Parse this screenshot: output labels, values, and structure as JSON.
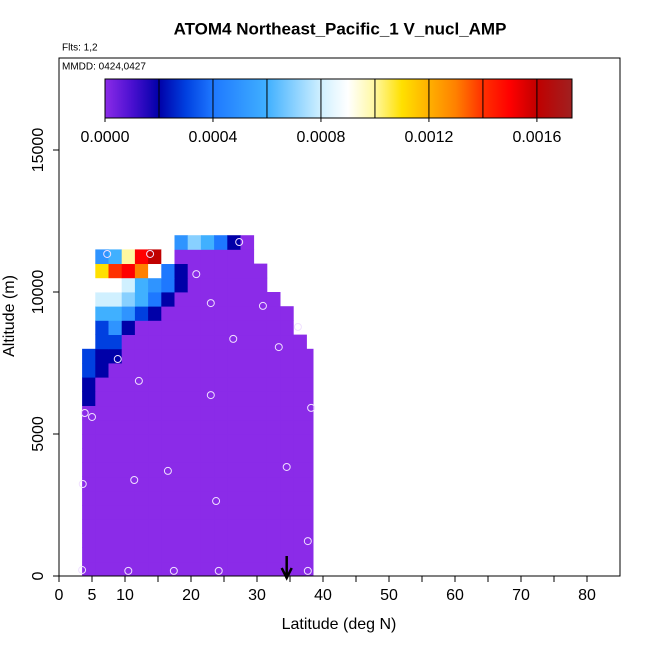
{
  "chart_data": {
    "type": "heatmap",
    "title": "ATOM4 Northeast_Pacific_1 V_nucl_AMP",
    "annotations": [
      "Flts: 1,2",
      "MMDD: 0424,0427"
    ],
    "xlabel": "Latitude (deg N)",
    "ylabel": "Altitude (m)",
    "xlim": [
      0,
      85
    ],
    "ylim": [
      0,
      18240
    ],
    "xticks": [
      0,
      5,
      10,
      20,
      30,
      40,
      50,
      60,
      70,
      80
    ],
    "xminorticks": [
      15,
      25,
      35,
      45,
      55,
      65,
      75
    ],
    "yticks": [
      0,
      5000,
      10000,
      15000
    ],
    "x_edges": [
      3.5,
      5.5,
      7.5,
      9.5,
      11.5,
      13.5,
      15.5,
      17.5,
      19.5,
      21.5,
      23.5,
      25.5,
      27.5,
      29.5,
      31.5,
      33.5,
      35.5,
      37.5,
      38.5
    ],
    "y_edges": [
      0,
      500,
      1000,
      1500,
      2000,
      2500,
      3000,
      3500,
      4000,
      4500,
      5000,
      5500,
      6000,
      6500,
      7000,
      7500,
      8000,
      8500,
      9000,
      9500,
      10000,
      10500,
      11000,
      11500,
      12000
    ],
    "z": [
      [
        0,
        0,
        0,
        0,
        0,
        0,
        0,
        0,
        0,
        0,
        0,
        0,
        0,
        0,
        0,
        0,
        0,
        0
      ],
      [
        0,
        0,
        0,
        0,
        0,
        0,
        0,
        0,
        0,
        0,
        0,
        0,
        0,
        0,
        0,
        0,
        0,
        0
      ],
      [
        0,
        0,
        0,
        0,
        0,
        0,
        0,
        0,
        0,
        0,
        0,
        0,
        0,
        0,
        0,
        0,
        0,
        0
      ],
      [
        0,
        0,
        0,
        0,
        0,
        0,
        0,
        0,
        0,
        0,
        0,
        0,
        0,
        0,
        0,
        0,
        0,
        0
      ],
      [
        0,
        0,
        0,
        0,
        0,
        0,
        0,
        0,
        0,
        0,
        0,
        0,
        0,
        0,
        0,
        0,
        0,
        0
      ],
      [
        0,
        0,
        0,
        0,
        0,
        0,
        0,
        0,
        0,
        0,
        0,
        0,
        0,
        0,
        0,
        0,
        0,
        0
      ],
      [
        0,
        0,
        0,
        0,
        0,
        0,
        0,
        0,
        0,
        0,
        0,
        0,
        0,
        0,
        0,
        0,
        0,
        0
      ],
      [
        0,
        0,
        0,
        0,
        0,
        0,
        0,
        0,
        0,
        0,
        0,
        0,
        0,
        0,
        0,
        0,
        0,
        0
      ],
      [
        0,
        0,
        0,
        0,
        0,
        0,
        0,
        0,
        0,
        0,
        0,
        0,
        0,
        0,
        0,
        0,
        0,
        0
      ],
      [
        0,
        0,
        0,
        0,
        0,
        0,
        0,
        0,
        0,
        0,
        0,
        0,
        0,
        0,
        0,
        0,
        0,
        0
      ],
      [
        0,
        0,
        0,
        0,
        0,
        0,
        0,
        0,
        0,
        0,
        0,
        0,
        0,
        0,
        0,
        0,
        0,
        0
      ],
      [
        0,
        0,
        0,
        0,
        0,
        0,
        0,
        0,
        0,
        0,
        0,
        0,
        0,
        0,
        0,
        0,
        0,
        0
      ],
      [
        0.0002,
        0,
        0,
        0,
        0,
        0,
        0,
        0,
        0,
        0,
        0,
        0,
        0,
        0,
        0,
        0,
        0,
        0
      ],
      [
        0.0002,
        0,
        0,
        0,
        0,
        0,
        0,
        0,
        0,
        0,
        0,
        0,
        0,
        0,
        0,
        0,
        0,
        0
      ],
      [
        0.0003,
        0.0002,
        0,
        0,
        0,
        0,
        0,
        0,
        0,
        0,
        0,
        0,
        0,
        0,
        0,
        0,
        0,
        0
      ],
      [
        0.0003,
        0.0002,
        0.0002,
        0,
        0,
        0,
        0,
        0,
        0,
        0,
        0,
        0,
        0,
        0,
        0,
        0,
        0,
        0
      ],
      [
        null,
        0.0003,
        0.0003,
        0,
        0,
        0,
        0,
        0,
        0,
        0,
        0,
        0,
        0,
        0,
        0,
        0,
        0,
        null
      ],
      [
        null,
        0.0003,
        0.0005,
        0.0002,
        0,
        0,
        0,
        0,
        0,
        0,
        0,
        0,
        0,
        0,
        0,
        0,
        null,
        null
      ],
      [
        null,
        0.0006,
        0.0006,
        0.0005,
        0.0003,
        0.0002,
        0,
        0,
        0,
        0,
        0,
        0,
        0,
        0,
        0,
        0,
        null,
        null
      ],
      [
        null,
        0.0008,
        0.0008,
        0.0007,
        0.0006,
        0.0004,
        0.0002,
        0,
        0,
        0,
        0,
        0,
        0,
        0,
        0,
        null,
        null,
        null
      ],
      [
        null,
        0.0009,
        0.0009,
        0.0008,
        0.0006,
        0.0005,
        0.0004,
        0.0002,
        0,
        0,
        0,
        0,
        0,
        0,
        null,
        null,
        null,
        null
      ],
      [
        null,
        0.0011,
        0.0014,
        0.0015,
        0.0013,
        0.0009,
        0.0004,
        0.0002,
        0,
        0,
        0,
        0,
        0,
        0,
        null,
        null,
        null,
        null
      ],
      [
        null,
        0.0005,
        0.0006,
        0.001,
        0.0015,
        0.0016,
        0.0009,
        0,
        0,
        0,
        0,
        0,
        0,
        null,
        null,
        null,
        null,
        null
      ],
      [
        null,
        null,
        null,
        null,
        null,
        null,
        null,
        0.0005,
        0.0007,
        0.0006,
        0.0004,
        0.0002,
        0,
        null,
        null,
        null,
        null,
        null
      ]
    ],
    "points": {
      "x": [
        3.5,
        10.5,
        17.4,
        24.2,
        37.7,
        37.7,
        3.6,
        11.4,
        16.5,
        23.8,
        34.5,
        3.9,
        5.0,
        38.2,
        23.0,
        12.1,
        8.9,
        33.3,
        26.4,
        36.2,
        30.9,
        23.0,
        20.8,
        7.3,
        13.8,
        27.3
      ],
      "y": [
        210,
        180,
        180,
        180,
        180,
        1230,
        3240,
        3380,
        3700,
        2640,
        3840,
        5740,
        5600,
        5920,
        6370,
        6870,
        7640,
        8060,
        8350,
        8770,
        9510,
        9610,
        10630,
        11340,
        11340,
        11760
      ]
    },
    "marker_lat": 34.5,
    "colorbar": {
      "lim": [
        0,
        0.00173
      ],
      "ticks": [
        {
          "value": 0,
          "label": "0.0000"
        },
        {
          "value": 0.0004,
          "label": "0.0004"
        },
        {
          "value": 0.0008,
          "label": "0.0008"
        },
        {
          "value": 0.0012,
          "label": "0.0012"
        },
        {
          "value": 0.0016,
          "label": "0.0016"
        }
      ],
      "dividers": [
        0.0002,
        0.0004,
        0.0006,
        0.0008,
        0.001,
        0.0012,
        0.0014,
        0.0016
      ],
      "stops": [
        {
          "value": 0,
          "color": "#8b2be8"
        },
        {
          "value": 0.0001,
          "color": "#4a10d0"
        },
        {
          "value": 0.0002,
          "color": "#0000a8"
        },
        {
          "value": 0.0003,
          "color": "#0040e0"
        },
        {
          "value": 0.0004,
          "color": "#1e78ff"
        },
        {
          "value": 0.0006,
          "color": "#40b0ff"
        },
        {
          "value": 0.0008,
          "color": "#d0f0ff"
        },
        {
          "value": 0.0009,
          "color": "#ffffff"
        },
        {
          "value": 0.001,
          "color": "#fff8a0"
        },
        {
          "value": 0.0011,
          "color": "#ffe000"
        },
        {
          "value": 0.0012,
          "color": "#ffb000"
        },
        {
          "value": 0.0013,
          "color": "#ff8000"
        },
        {
          "value": 0.0014,
          "color": "#ff3000"
        },
        {
          "value": 0.0015,
          "color": "#ff0000"
        },
        {
          "value": 0.0016,
          "color": "#c00000"
        },
        {
          "value": 0.00173,
          "color": "#a02020"
        }
      ]
    }
  }
}
